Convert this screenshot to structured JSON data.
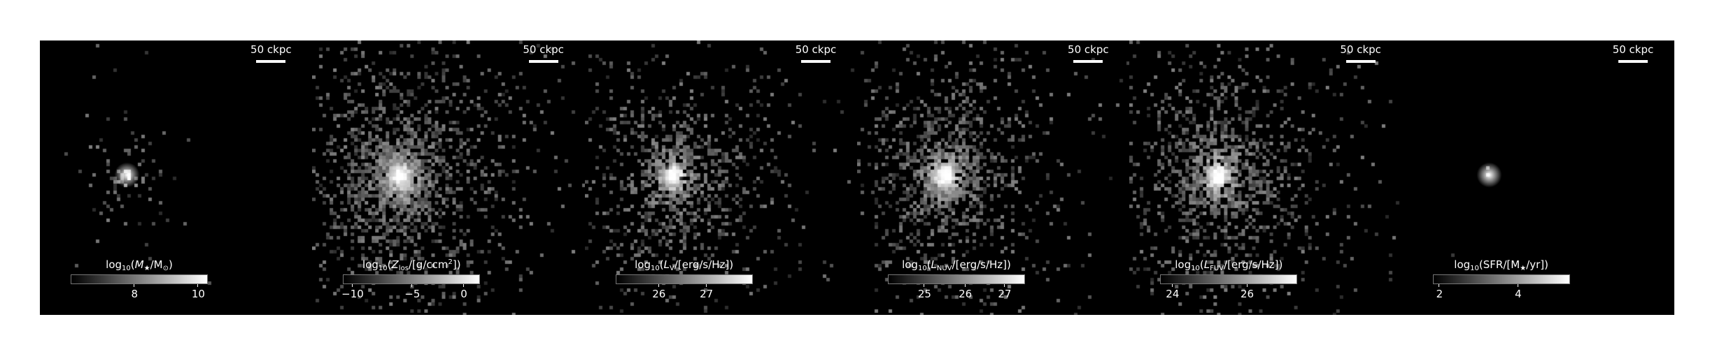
{
  "figure": {
    "background": "#000000",
    "colormap": "gray",
    "panels": [
      {
        "id": "stellar-mass",
        "scale_label": "50 ckpc",
        "cbar": {
          "pre": "log",
          "sub": "10",
          "open": "(",
          "sym": "M",
          "sym_sub": "★",
          "rest": "/M",
          "rest_sub": "⊙",
          "close": ")"
        },
        "ticks": [
          {
            "label": "8",
            "frac": 0.46
          },
          {
            "label": "10",
            "frac": 0.93
          }
        ],
        "blob": {
          "spread": 0.13,
          "density": 0.35,
          "core": 1.0,
          "seed": 11
        }
      },
      {
        "id": "metallicity",
        "scale_label": "50 ckpc",
        "cbar": {
          "pre": "log",
          "sub": "10",
          "open": "(",
          "sym": "Z",
          "sym_sub": "los",
          "rest": "/[g/ccm",
          "rest_sup": "2",
          "rest_after": "])"
        },
        "ticks": [
          {
            "label": "−10",
            "frac": 0.06
          },
          {
            "label": "−5",
            "frac": 0.5
          },
          {
            "label": "0",
            "frac": 0.88
          }
        ],
        "blob": {
          "spread": 0.35,
          "density": 0.85,
          "core": 0.85,
          "seed": 23
        }
      },
      {
        "id": "v-band-luminosity",
        "scale_label": "50 ckpc",
        "cbar": {
          "pre": "log",
          "sub": "10",
          "open": "(",
          "sym": "L",
          "sym_sub": "V",
          "rest": "/[erg/s/Hz])"
        },
        "ticks": [
          {
            "label": "26",
            "frac": 0.31
          },
          {
            "label": "27",
            "frac": 0.66
          }
        ],
        "blob": {
          "spread": 0.3,
          "density": 0.7,
          "core": 0.95,
          "seed": 37
        }
      },
      {
        "id": "nuv-luminosity",
        "scale_label": "50 ckpc",
        "cbar": {
          "pre": "log",
          "sub": "10",
          "open": "(",
          "sym": "L",
          "sym_sub": "NUV",
          "rest": "/[erg/s/Hz])"
        },
        "ticks": [
          {
            "label": "25",
            "frac": 0.26
          },
          {
            "label": "26",
            "frac": 0.56
          },
          {
            "label": "27",
            "frac": 0.85
          }
        ],
        "blob": {
          "spread": 0.32,
          "density": 0.75,
          "core": 0.95,
          "seed": 41
        }
      },
      {
        "id": "fuv-luminosity",
        "scale_label": "50 ckpc",
        "cbar": {
          "pre": "log",
          "sub": "10",
          "open": "(",
          "sym": "L",
          "sym_sub": "FUV",
          "rest": "/[erg/s/Hz])"
        },
        "ticks": [
          {
            "label": "24",
            "frac": 0.08
          },
          {
            "label": "26",
            "frac": 0.63
          }
        ],
        "blob": {
          "spread": 0.33,
          "density": 0.75,
          "core": 0.95,
          "seed": 53
        }
      },
      {
        "id": "star-formation-rate",
        "scale_label": "50 ckpc",
        "cbar": {
          "pre": "log",
          "sub": "10",
          "open": "(",
          "plain": "SFR/[M",
          "plain_sub": "★",
          "rest": "/yr])"
        },
        "ticks": [
          {
            "label": "2",
            "frac": 0.04
          },
          {
            "label": "4",
            "frac": 0.62
          }
        ],
        "blob": {
          "spread": 0.03,
          "density": 0.1,
          "core": 1.0,
          "seed": 67
        }
      }
    ]
  }
}
